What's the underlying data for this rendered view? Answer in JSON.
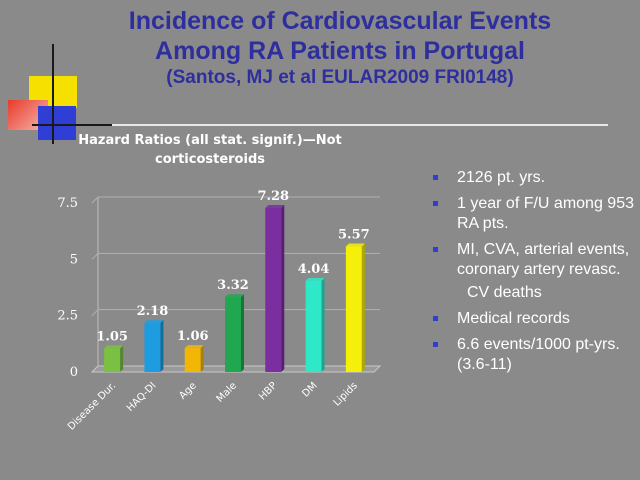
{
  "slide": {
    "title_line1": "Incidence of Cardiovascular Events",
    "title_line2": "Among RA Patients in Portugal",
    "title_line3": "(Santos, MJ et al EULAR2009 FRI0148)"
  },
  "bullets": [
    {
      "text": "2126 pt. yrs.",
      "marker": true
    },
    {
      "text": "1 year of F/U among 953 RA pts.",
      "marker": true
    },
    {
      "text": "MI, CVA, arterial events, coronary artery revasc.",
      "marker": true
    },
    {
      "text": "CV deaths",
      "marker": false
    },
    {
      "text": "Medical records",
      "marker": true
    },
    {
      "text": "6.6 events/1000 pt-yrs. (3.6-11)",
      "marker": true
    }
  ],
  "colors": {
    "background": "#8a8a8a",
    "title": "#2e2e9e",
    "bullet_marker": "#2f3fd6"
  },
  "chart_data": {
    "type": "bar",
    "title": "Hazard Ratios (all stat. signif.)—Not corticosteroids",
    "categories": [
      "Disease Dur.",
      "HAQ-DI",
      "Age",
      "Male",
      "HBP",
      "DM",
      "Lipids"
    ],
    "values": [
      1.05,
      2.18,
      1.06,
      3.32,
      7.28,
      4.04,
      5.57
    ],
    "data_labels": [
      "1.05",
      "2.18",
      "1.06",
      "3.32",
      "7.28",
      "4.04",
      "5.57"
    ],
    "bar_colors": [
      "#7ac143",
      "#1e9ce0",
      "#f2b705",
      "#1fa84f",
      "#7a2ea0",
      "#2ee8c8",
      "#f5f00a"
    ],
    "yticks": [
      0,
      2.5,
      5,
      7.5
    ],
    "ytick_labels": [
      "0",
      "2.5",
      "5",
      "7.5"
    ],
    "ylim": [
      0,
      7.5
    ],
    "grid": true,
    "legend": "none",
    "xlabel": "",
    "ylabel": ""
  }
}
